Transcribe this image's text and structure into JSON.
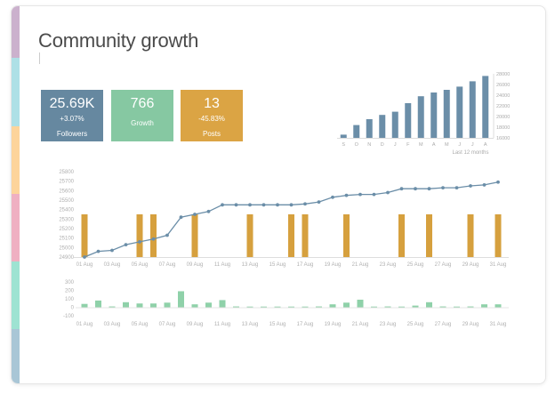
{
  "title": "Community growth",
  "colors": {
    "followers_kpi": "#6688a0",
    "growth_kpi": "#86c8a2",
    "posts_kpi": "#dba444",
    "monthly_bars": "#6b8ea8",
    "line": "#6b8ea8",
    "post_bars": "#d6a03e",
    "growth_bars": "#8fd1a9",
    "stripes": [
      "#cbb1cd",
      "#aee0e6",
      "#fdd49b",
      "#efb0c2",
      "#9ee3d2",
      "#a9c6d6"
    ]
  },
  "kpis": [
    {
      "value": "25.69K",
      "change": "+3.07%",
      "label": "Followers"
    },
    {
      "value": "766",
      "change": "",
      "label": "Growth"
    },
    {
      "value": "13",
      "change": "-45.83%",
      "label": "Posts"
    }
  ],
  "chart_data": [
    {
      "type": "bar",
      "caption": "Last 12 months",
      "categories": [
        "S",
        "O",
        "N",
        "D",
        "J",
        "F",
        "M",
        "A",
        "M",
        "J",
        "J",
        "A"
      ],
      "values": [
        16600,
        18400,
        19500,
        20300,
        20900,
        22500,
        23800,
        24500,
        25000,
        25600,
        26600,
        27600
      ],
      "ylim": [
        16000,
        28000
      ],
      "yticks": [
        "28000",
        "26000",
        "24000",
        "22000",
        "20000",
        "18000",
        "16000"
      ]
    },
    {
      "type": "line",
      "x": [
        "01 Aug",
        "02 Aug",
        "03 Aug",
        "04 Aug",
        "05 Aug",
        "06 Aug",
        "07 Aug",
        "08 Aug",
        "09 Aug",
        "10 Aug",
        "11 Aug",
        "12 Aug",
        "13 Aug",
        "14 Aug",
        "15 Aug",
        "16 Aug",
        "17 Aug",
        "18 Aug",
        "19 Aug",
        "20 Aug",
        "21 Aug",
        "22 Aug",
        "23 Aug",
        "24 Aug",
        "25 Aug",
        "26 Aug",
        "27 Aug",
        "28 Aug",
        "29 Aug",
        "30 Aug",
        "31 Aug"
      ],
      "followers": [
        24900,
        24960,
        24970,
        25030,
        25060,
        25090,
        25130,
        25320,
        25350,
        25380,
        25450,
        25450,
        25450,
        25450,
        25450,
        25450,
        25460,
        25480,
        25530,
        25550,
        25560,
        25560,
        25580,
        25620,
        25620,
        25620,
        25630,
        25630,
        25650,
        25660,
        25690
      ],
      "post_days": [
        "01 Aug",
        "05 Aug",
        "06 Aug",
        "09 Aug",
        "13 Aug",
        "16 Aug",
        "17 Aug",
        "20 Aug",
        "24 Aug",
        "26 Aug",
        "29 Aug",
        "31 Aug"
      ],
      "ylim": [
        24900,
        25800
      ],
      "yticks": [
        "25800",
        "25700",
        "25600",
        "25500",
        "25400",
        "25300",
        "25200",
        "25100",
        "25000",
        "24900"
      ],
      "xticks": [
        "01 Aug",
        "03 Aug",
        "05 Aug",
        "07 Aug",
        "09 Aug",
        "11 Aug",
        "13 Aug",
        "15 Aug",
        "17 Aug",
        "19 Aug",
        "21 Aug",
        "23 Aug",
        "25 Aug",
        "27 Aug",
        "29 Aug",
        "31 Aug"
      ]
    },
    {
      "type": "bar",
      "x": [
        "01 Aug",
        "02 Aug",
        "03 Aug",
        "04 Aug",
        "05 Aug",
        "06 Aug",
        "07 Aug",
        "08 Aug",
        "09 Aug",
        "10 Aug",
        "11 Aug",
        "12 Aug",
        "13 Aug",
        "14 Aug",
        "15 Aug",
        "16 Aug",
        "17 Aug",
        "18 Aug",
        "19 Aug",
        "20 Aug",
        "21 Aug",
        "22 Aug",
        "23 Aug",
        "24 Aug",
        "25 Aug",
        "26 Aug",
        "27 Aug",
        "28 Aug",
        "29 Aug",
        "30 Aug",
        "31 Aug"
      ],
      "values": [
        40,
        80,
        10,
        60,
        45,
        45,
        55,
        190,
        35,
        55,
        85,
        10,
        0,
        5,
        0,
        5,
        0,
        10,
        35,
        55,
        90,
        5,
        10,
        5,
        20,
        60,
        10,
        5,
        10,
        35,
        35
      ],
      "ylim": [
        -100,
        300
      ],
      "yticks": [
        "300",
        "200",
        "100",
        "0",
        "-100"
      ],
      "xticks": [
        "01 Aug",
        "03 Aug",
        "05 Aug",
        "07 Aug",
        "09 Aug",
        "11 Aug",
        "13 Aug",
        "15 Aug",
        "17 Aug",
        "19 Aug",
        "21 Aug",
        "23 Aug",
        "25 Aug",
        "27 Aug",
        "29 Aug",
        "31 Aug"
      ]
    }
  ]
}
